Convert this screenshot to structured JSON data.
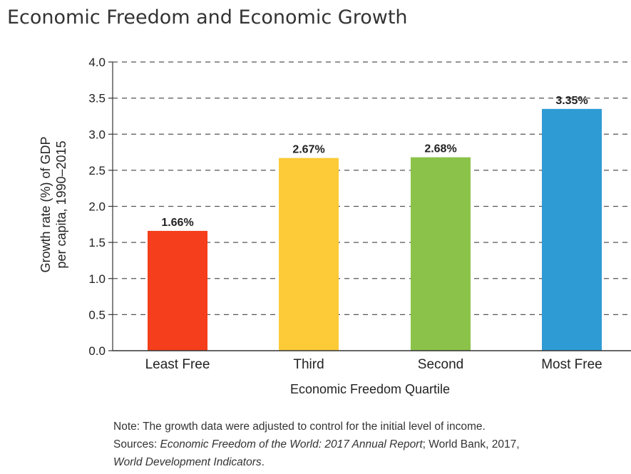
{
  "title": "Economic Freedom and Economic Growth",
  "chart_data": {
    "type": "bar",
    "title": "Economic Freedom and Economic Growth",
    "categories": [
      "Least Free",
      "Third",
      "Second",
      "Most Free"
    ],
    "values": [
      1.66,
      2.67,
      2.68,
      3.35
    ],
    "data_labels": [
      "1.66%",
      "2.67%",
      "2.68%",
      "3.35%"
    ],
    "colors": [
      "#f53e1b",
      "#fdcb37",
      "#8bc34a",
      "#2e9bd4"
    ],
    "xlabel": "Economic Freedom Quartile",
    "ylabel_line1": "Growth rate (%) of GDP",
    "ylabel_line2": "per capita, 1990–2015",
    "ylim": [
      0,
      4.0
    ],
    "yticks": [
      "0.0",
      "0.5",
      "1.0",
      "1.5",
      "2.0",
      "2.5",
      "3.0",
      "3.5",
      "4.0"
    ],
    "grid": "dashed horizontal"
  },
  "notes": {
    "note": "Note: The growth data were adjusted to control for the initial level of income.",
    "sources_prefix": "Sources: ",
    "sources_italic": "Economic Freedom of the World: 2017 Annual Report",
    "sources_mid": "; World Bank, 2017,",
    "sources_italic2": "World Development Indicators",
    "sources_end": "."
  }
}
